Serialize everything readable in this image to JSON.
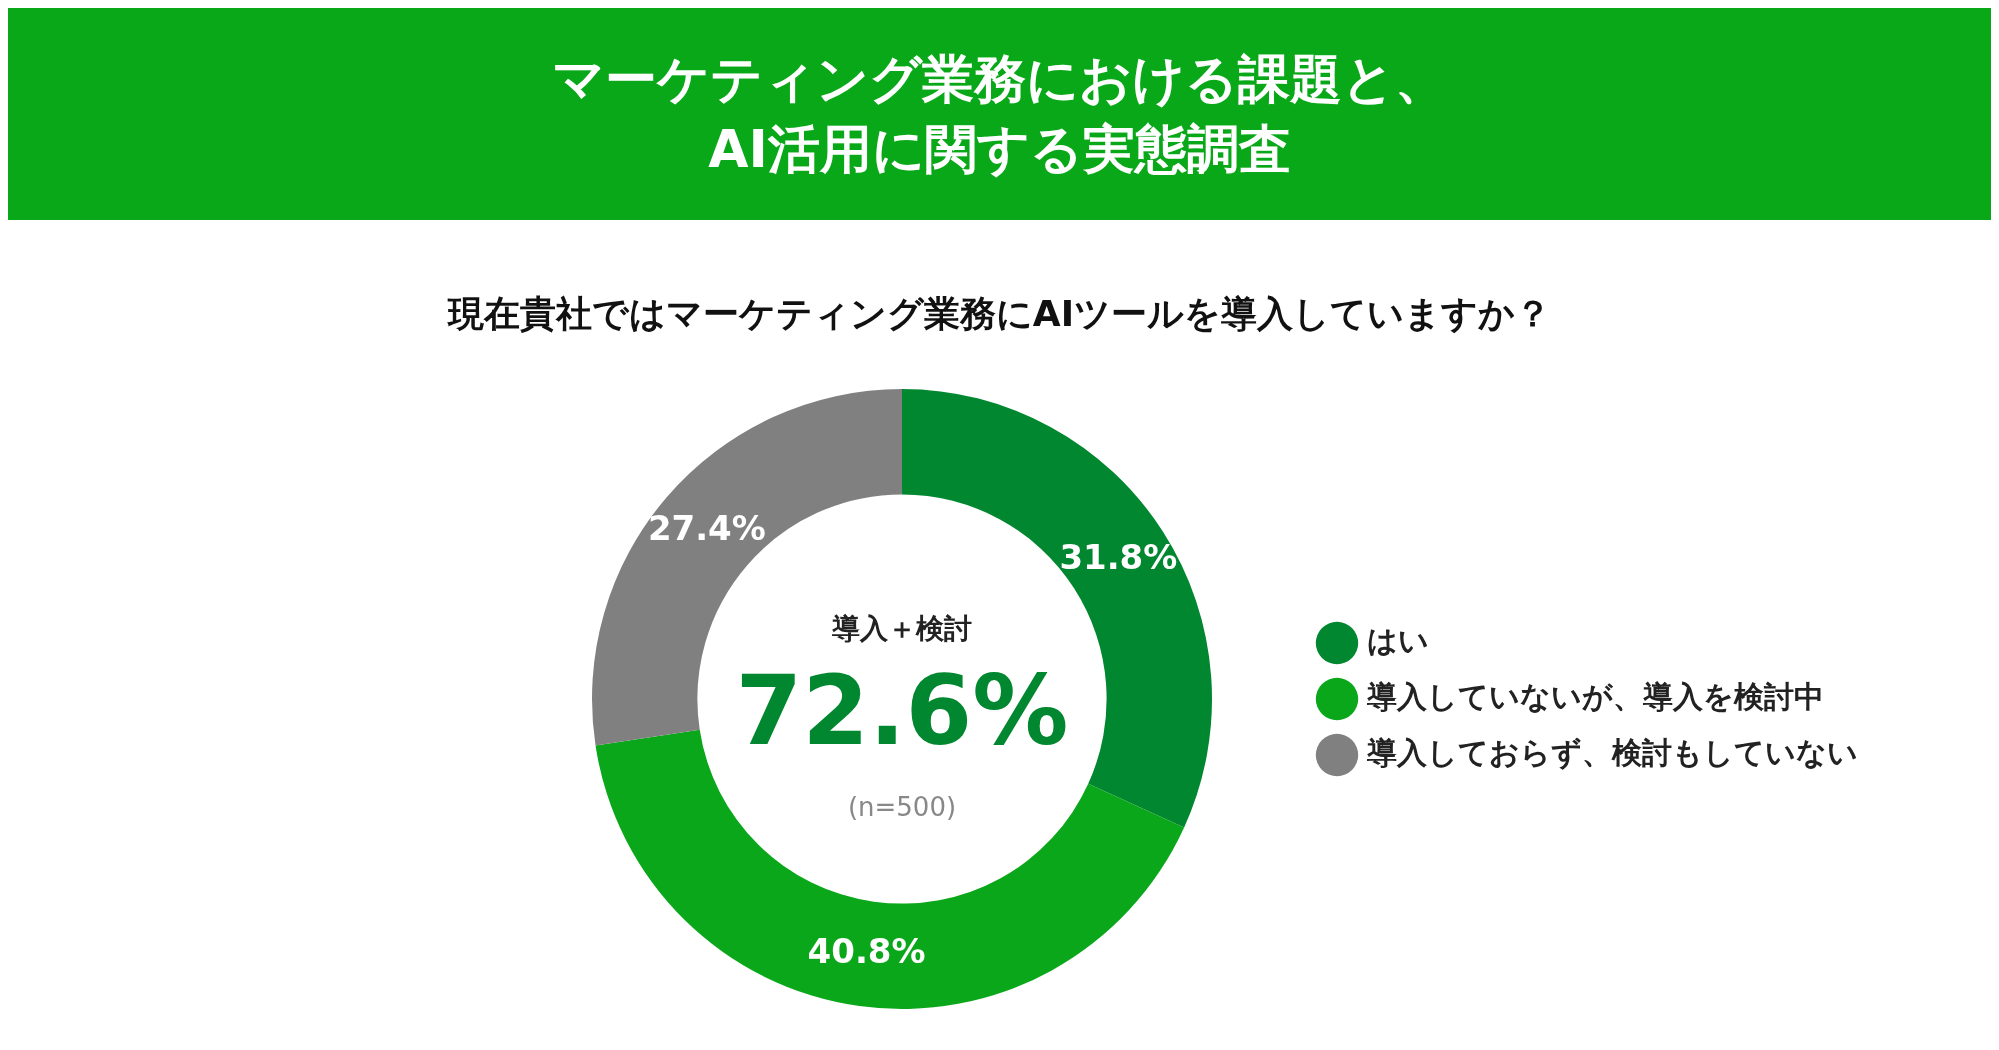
{
  "chart_data": {
    "type": "donut",
    "title": "マーケティング業務における課題と、\nAI活用に関する実態調査",
    "subtitle": "現在貴社ではマーケティング業務にAIツールを導入していますか？",
    "categories": [
      "はい",
      "導入していないが、導入を検討中",
      "導入しておらず、検討もしていない"
    ],
    "values": [
      31.8,
      40.8,
      27.4
    ],
    "colors": [
      "#00872f",
      "#0aa71a",
      "#808080"
    ],
    "value_labels": [
      "31.8%",
      "40.8%",
      "27.4%"
    ],
    "annotations": [
      "導入＋検討",
      "72.6%",
      "(n=500)"
    ],
    "legend": "right"
  }
}
